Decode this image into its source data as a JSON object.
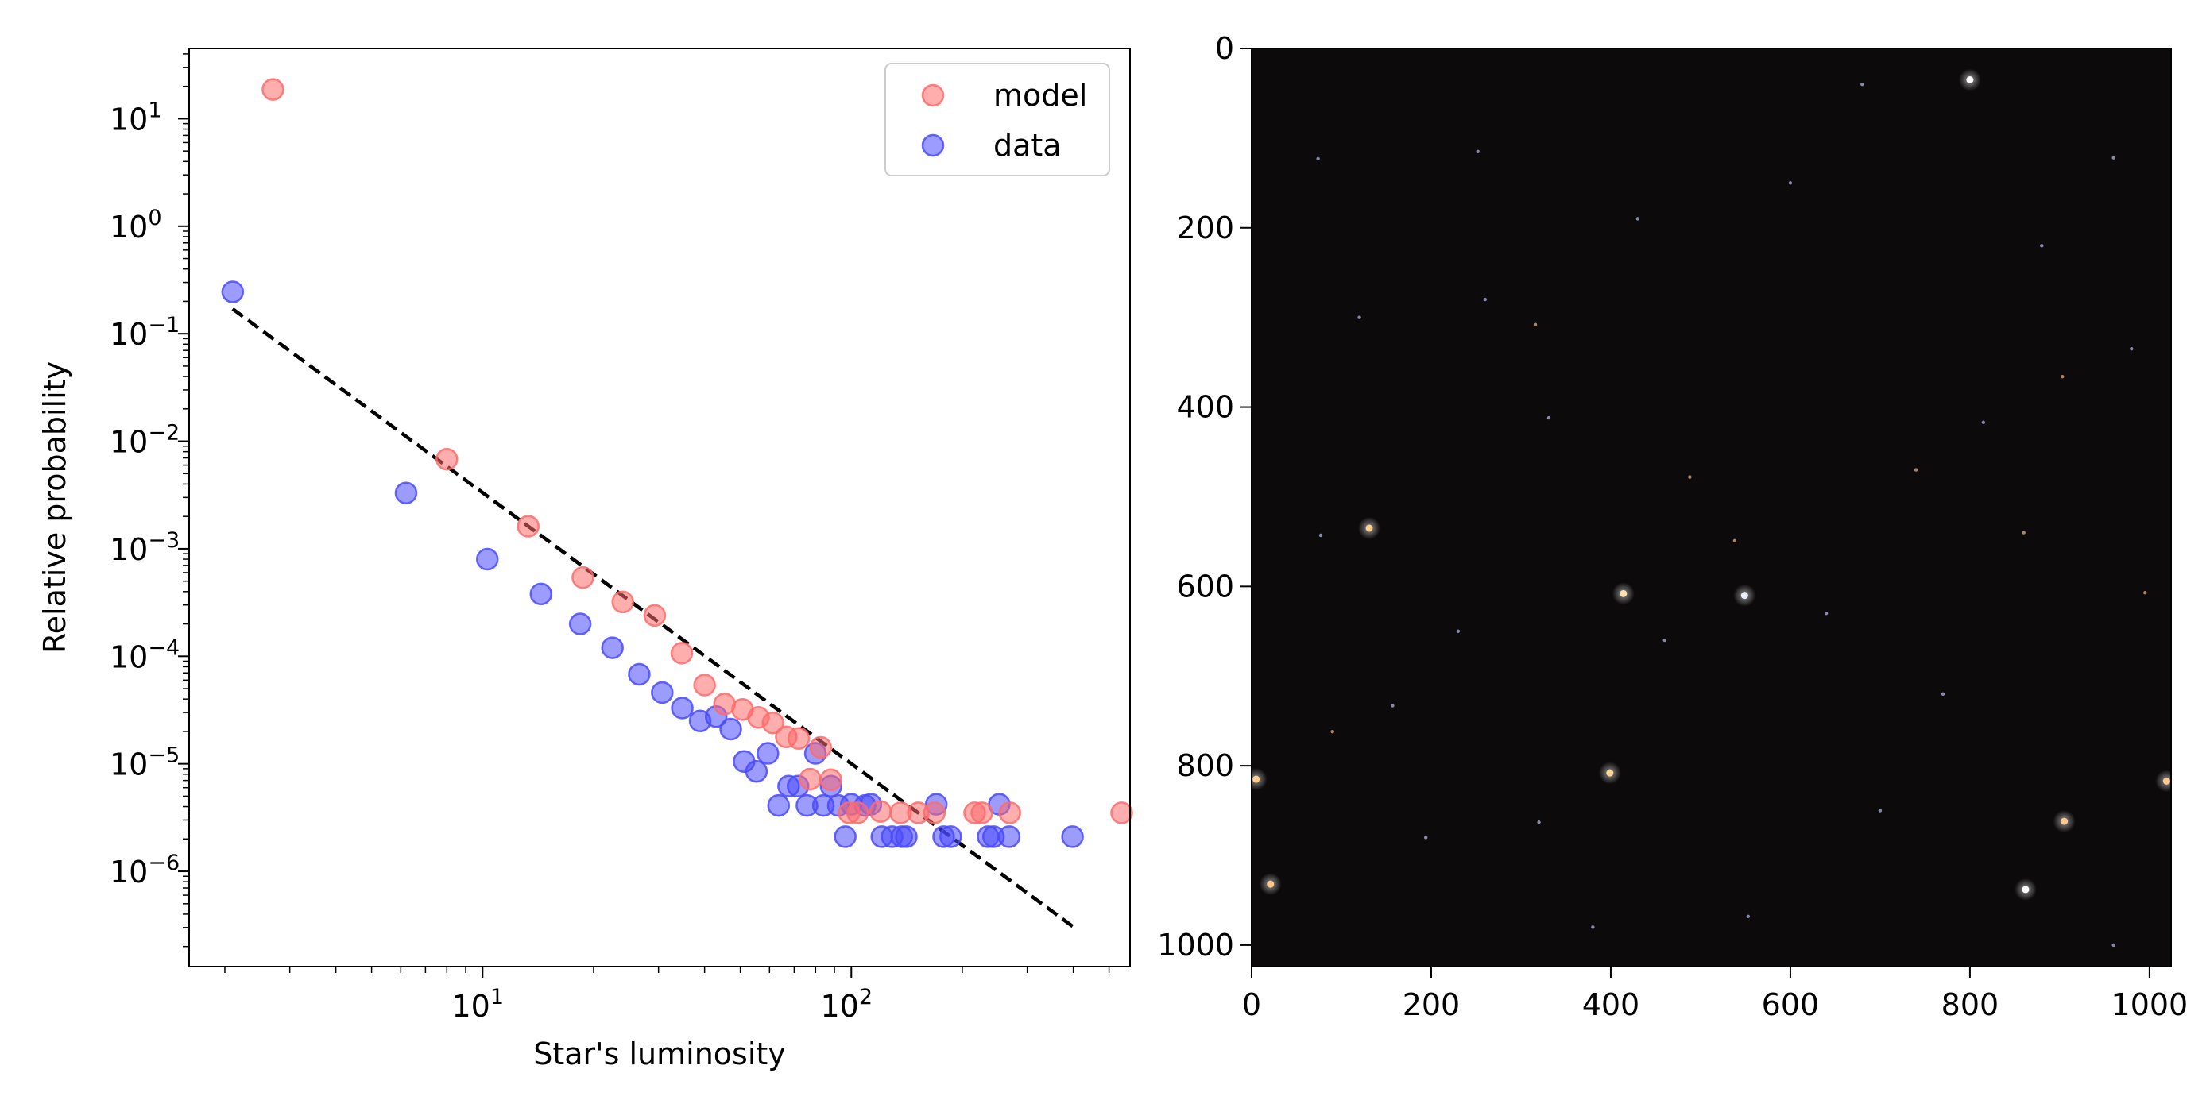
{
  "chart_data": [
    {
      "type": "scatter",
      "xlabel": "Star's luminosity",
      "ylabel": "Relative probability",
      "xscale": "log",
      "yscale": "log",
      "xlim": [
        1.6,
        570
      ],
      "ylim": [
        1.3e-07,
        45
      ],
      "x_ticks": [
        {
          "value": 10,
          "base": "10",
          "exp": "1"
        },
        {
          "value": 100,
          "base": "10",
          "exp": "2"
        }
      ],
      "y_ticks": [
        {
          "value": 1e-06,
          "base": "10",
          "exp": "−6"
        },
        {
          "value": 1e-05,
          "base": "10",
          "exp": "−5"
        },
        {
          "value": 0.0001,
          "base": "10",
          "exp": "−4"
        },
        {
          "value": 0.001,
          "base": "10",
          "exp": "−3"
        },
        {
          "value": 0.01,
          "base": "10",
          "exp": "−2"
        },
        {
          "value": 0.1,
          "base": "10",
          "exp": "−1"
        },
        {
          "value": 1,
          "base": "10",
          "exp": "0"
        },
        {
          "value": 10,
          "base": "10",
          "exp": "1"
        }
      ],
      "legend": {
        "placement": "top-right",
        "entries": [
          "model",
          "data"
        ]
      },
      "series": [
        {
          "name": "model",
          "color": "#ff6b6b",
          "points": [
            [
              2.7,
              18.7
            ],
            [
              8.0,
              0.0068
            ],
            [
              13.3,
              0.00162
            ],
            [
              18.7,
              0.00054
            ],
            [
              24.0,
              0.00032
            ],
            [
              29.3,
              0.00024
            ],
            [
              34.7,
              0.000107
            ],
            [
              40.0,
              5.4e-05
            ],
            [
              45.3,
              3.6e-05
            ],
            [
              50.7,
              3.2e-05
            ],
            [
              56.0,
              2.7e-05
            ],
            [
              61.3,
              2.4e-05
            ],
            [
              66.6,
              1.78e-05
            ],
            [
              72.0,
              1.72e-05
            ],
            [
              77.3,
              7.2e-06
            ],
            [
              82.6,
              1.42e-05
            ],
            [
              88.0,
              7.1e-06
            ],
            [
              98.6,
              3.5e-06
            ],
            [
              104,
              3.5e-06
            ],
            [
              120,
              3.6e-06
            ],
            [
              136,
              3.5e-06
            ],
            [
              152,
              3.5e-06
            ],
            [
              168,
              3.5e-06
            ],
            [
              216,
              3.5e-06
            ],
            [
              226,
              3.5e-06
            ],
            [
              269,
              3.5e-06
            ],
            [
              541,
              3.5e-06
            ]
          ]
        },
        {
          "name": "data",
          "color": "#4a4aff",
          "points": [
            [
              2.1,
              0.245
            ],
            [
              6.2,
              0.0033
            ],
            [
              10.3,
              0.0008
            ],
            [
              14.4,
              0.00038
            ],
            [
              18.4,
              0.0002
            ],
            [
              22.5,
              0.00012
            ],
            [
              26.6,
              6.8e-05
            ],
            [
              30.7,
              4.6e-05
            ],
            [
              34.8,
              3.3e-05
            ],
            [
              38.9,
              2.5e-05
            ],
            [
              43.0,
              2.75e-05
            ],
            [
              47.1,
              2.1e-05
            ],
            [
              51.2,
              1.05e-05
            ],
            [
              55.3,
              8.5e-06
            ],
            [
              59.4,
              1.25e-05
            ],
            [
              63.5,
              4.1e-06
            ],
            [
              67.6,
              6.2e-06
            ],
            [
              71.7,
              6.2e-06
            ],
            [
              75.8,
              4.1e-06
            ],
            [
              79.9,
              1.25e-05
            ],
            [
              84.0,
              4.1e-06
            ],
            [
              88.1,
              6.2e-06
            ],
            [
              92.2,
              4.1e-06
            ],
            [
              96.3,
              2.1e-06
            ],
            [
              100,
              4.2e-06
            ],
            [
              109,
              4.1e-06
            ],
            [
              113,
              4.2e-06
            ],
            [
              121,
              2.1e-06
            ],
            [
              129,
              2.1e-06
            ],
            [
              137,
              2.1e-06
            ],
            [
              141,
              2.1e-06
            ],
            [
              170,
              4.2e-06
            ],
            [
              178,
              2.1e-06
            ],
            [
              186,
              2.1e-06
            ],
            [
              235,
              2.1e-06
            ],
            [
              243,
              2.1e-06
            ],
            [
              252,
              4.2e-06
            ],
            [
              268,
              2.1e-06
            ],
            [
              398,
              2.1e-06
            ]
          ]
        }
      ],
      "fit_line": {
        "style": "dashed",
        "color": "#000000",
        "points": [
          [
            2.1,
            0.17
          ],
          [
            405,
            2.95e-07
          ]
        ]
      }
    },
    {
      "type": "image",
      "content": "star field",
      "xlim": [
        0,
        1024
      ],
      "ylim": [
        1024,
        0
      ],
      "x_ticks": [
        "0",
        "200",
        "400",
        "600",
        "800",
        "1000"
      ],
      "y_ticks": [
        "0",
        "200",
        "400",
        "600",
        "800",
        "1000"
      ],
      "background": "#0c0a0b",
      "bright_stars": [
        {
          "x": 800,
          "y": 35,
          "color": "#ffffff"
        },
        {
          "x": 862,
          "y": 938,
          "color": "#ffffff"
        },
        {
          "x": 399,
          "y": 808,
          "color": "#ffd49a"
        },
        {
          "x": 414,
          "y": 608,
          "color": "#ffe0b0"
        },
        {
          "x": 549,
          "y": 610,
          "color": "#e8eeff"
        },
        {
          "x": 5,
          "y": 815,
          "color": "#ffcf90"
        },
        {
          "x": 21,
          "y": 932,
          "color": "#ffc890"
        },
        {
          "x": 131,
          "y": 535,
          "color": "#ffcf90"
        },
        {
          "x": 905,
          "y": 862,
          "color": "#ffc890"
        },
        {
          "x": 1019,
          "y": 817,
          "color": "#ffc890"
        }
      ],
      "faint_stars": [
        [
          74,
          123,
          "#bcc8ff"
        ],
        [
          252,
          115,
          "#c8d0ff"
        ],
        [
          960,
          122,
          "#c8d0ff"
        ],
        [
          980,
          335,
          "#c8d0ff"
        ],
        [
          331,
          412,
          "#d0d0ff"
        ],
        [
          815,
          417,
          "#c8d0ff"
        ],
        [
          77,
          543,
          "#c8d0ff"
        ],
        [
          316,
          308,
          "#ffc890"
        ],
        [
          903,
          366,
          "#ffc890"
        ],
        [
          488,
          478,
          "#ffc890"
        ],
        [
          538,
          549,
          "#ffc890"
        ],
        [
          90,
          762,
          "#ffc890"
        ],
        [
          157,
          733,
          "#c8d0ff"
        ],
        [
          320,
          863,
          "#c8d0ff"
        ],
        [
          194,
          880,
          "#d0d0ff"
        ],
        [
          553,
          968,
          "#c8d0ff"
        ],
        [
          680,
          40,
          "#c8d0ff"
        ],
        [
          995,
          607,
          "#ffc890"
        ],
        [
          740,
          470,
          "#ffc890"
        ],
        [
          640,
          630,
          "#d0d0ff"
        ],
        [
          460,
          660,
          "#c8d0ff"
        ],
        [
          700,
          850,
          "#c8d0ff"
        ],
        [
          960,
          1000,
          "#c8d0ff"
        ],
        [
          260,
          280,
          "#c8d0ff"
        ],
        [
          600,
          150,
          "#d0d0ff"
        ],
        [
          120,
          300,
          "#c8d0ff"
        ],
        [
          430,
          190,
          "#c8d0ff"
        ],
        [
          880,
          220,
          "#d0d0ff"
        ],
        [
          860,
          540,
          "#ffc890"
        ],
        [
          230,
          650,
          "#c8d0ff"
        ],
        [
          380,
          980,
          "#c8d0ff"
        ],
        [
          770,
          720,
          "#d0d0ff"
        ]
      ]
    }
  ]
}
